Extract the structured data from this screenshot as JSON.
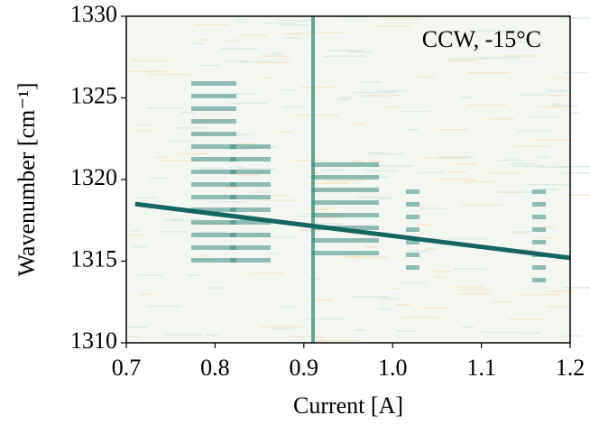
{
  "chart_data": {
    "type": "line",
    "annotation": "CCW, -15°C",
    "x_label": "Current [A]",
    "y_label": "Wavenumber [cm⁻¹]",
    "xlim": [
      0.7,
      1.2
    ],
    "ylim": [
      1310,
      1330
    ],
    "xticks": [
      0.7,
      0.8,
      0.9,
      {
        "value": 1,
        "label": "1.0"
      },
      1.1,
      1.2
    ],
    "yticks": [
      1310,
      1315,
      1320,
      1325,
      1330
    ],
    "series": [
      {
        "color": "#14665f",
        "x": [
          0.71,
          1.2
        ],
        "values": [
          1318.5,
          1315.2
        ]
      }
    ]
  }
}
